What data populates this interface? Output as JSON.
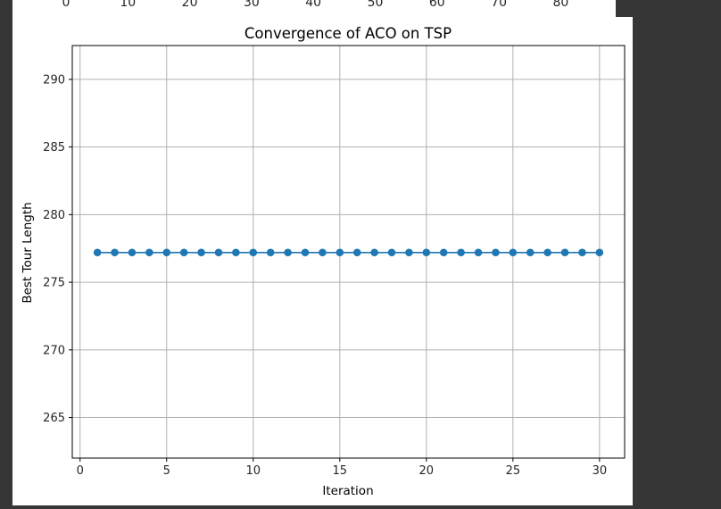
{
  "background_plot": {
    "x_tick_labels": [
      "0",
      "10",
      "20",
      "30",
      "40",
      "50",
      "60",
      "70",
      "80"
    ]
  },
  "chart_data": {
    "type": "line",
    "title": "Convergence of ACO on TSP",
    "xlabel": "Iteration",
    "ylabel": "Best Tour Length",
    "x": [
      1,
      2,
      3,
      4,
      5,
      6,
      7,
      8,
      9,
      10,
      11,
      12,
      13,
      14,
      15,
      16,
      17,
      18,
      19,
      20,
      21,
      22,
      23,
      24,
      25,
      26,
      27,
      28,
      29,
      30
    ],
    "series": [
      {
        "values": [
          277.2,
          277.2,
          277.2,
          277.2,
          277.2,
          277.2,
          277.2,
          277.2,
          277.2,
          277.2,
          277.2,
          277.2,
          277.2,
          277.2,
          277.2,
          277.2,
          277.2,
          277.2,
          277.2,
          277.2,
          277.2,
          277.2,
          277.2,
          277.2,
          277.2,
          277.2,
          277.2,
          277.2,
          277.2,
          277.2
        ],
        "color": "#1f77b4",
        "marker": "circle"
      }
    ],
    "xlim": [
      -0.45,
      31.45
    ],
    "ylim": [
      262.0,
      292.5
    ],
    "x_ticks": [
      0,
      5,
      10,
      15,
      20,
      25,
      30
    ],
    "y_ticks": [
      265,
      270,
      275,
      280,
      285,
      290
    ],
    "grid": true
  }
}
